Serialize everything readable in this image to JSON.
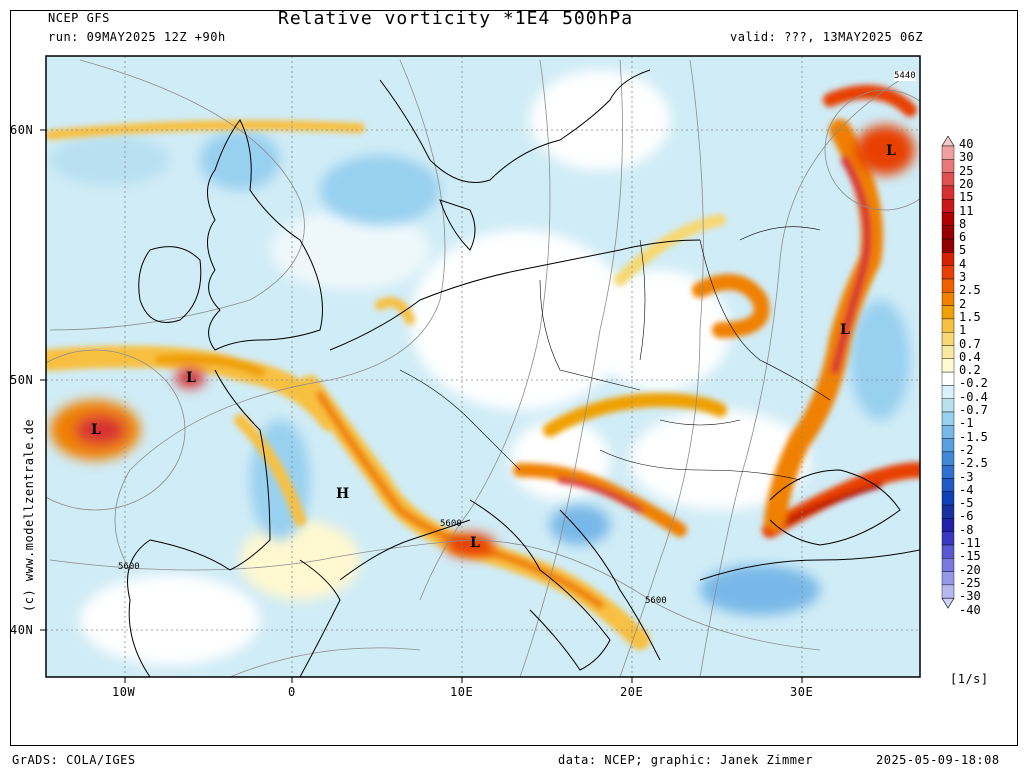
{
  "header": {
    "model": "NCEP GFS",
    "run": "run: 09MAY2025 12Z +90h",
    "title": "Relative vorticity *1E4 500hPa",
    "valid": "valid: ???, 13MAY2025 06Z"
  },
  "watermark": "(c) www.modellzentrale.de",
  "footer": {
    "left": "GrADS: COLA/IGES",
    "center": "data: NCEP; graphic: Janek Zimmer",
    "right": "2025-05-09-18:08"
  },
  "map": {
    "lat_labels": [
      "60N",
      "50N",
      "40N"
    ],
    "lon_labels": [
      "10W",
      "0",
      "10E",
      "20E",
      "30E"
    ],
    "contour_labels": [
      "5440",
      "5600",
      "5600",
      "5600"
    ],
    "pressure_centers": [
      {
        "symbol": "L",
        "name": "low-west-atlantic"
      },
      {
        "symbol": "L",
        "name": "low-bay-of-biscay-north"
      },
      {
        "symbol": "H",
        "name": "high-france"
      },
      {
        "symbol": "L",
        "name": "low-corsica"
      },
      {
        "symbol": "L",
        "name": "low-russia-north"
      },
      {
        "symbol": "L",
        "name": "low-ukraine"
      }
    ]
  },
  "legend": {
    "unit": "[1/s]",
    "levels": [
      "40",
      "30",
      "25",
      "20",
      "15",
      "11",
      "8",
      "6",
      "5",
      "4",
      "3",
      "2.5",
      "2",
      "1.5",
      "1",
      "0.7",
      "0.4",
      "0.2",
      "-0.2",
      "-0.4",
      "-0.7",
      "-1",
      "-1.5",
      "-2",
      "-2.5",
      "-3",
      "-4",
      "-5",
      "-6",
      "-8",
      "-11",
      "-15",
      "-20",
      "-25",
      "-30",
      "-40"
    ],
    "colors": [
      "#f8c8c8",
      "#f0a0a0",
      "#e87878",
      "#e05050",
      "#d83030",
      "#c81818",
      "#b00000",
      "#980000",
      "#900000",
      "#d82000",
      "#e84000",
      "#f06000",
      "#f08000",
      "#f0a000",
      "#f8c040",
      "#f8d870",
      "#f8e8a0",
      "#fff8d0",
      "#ffffff",
      "#d8f0f8",
      "#b8e0f0",
      "#98d0f0",
      "#78b8e8",
      "#58a0e0",
      "#4088d8",
      "#3070d0",
      "#2058c8",
      "#1040b8",
      "#1830a0",
      "#2020a8",
      "#3838c0",
      "#5858d0",
      "#7878e0",
      "#9898e8",
      "#b8b8f0",
      "#d0d0f8"
    ]
  }
}
